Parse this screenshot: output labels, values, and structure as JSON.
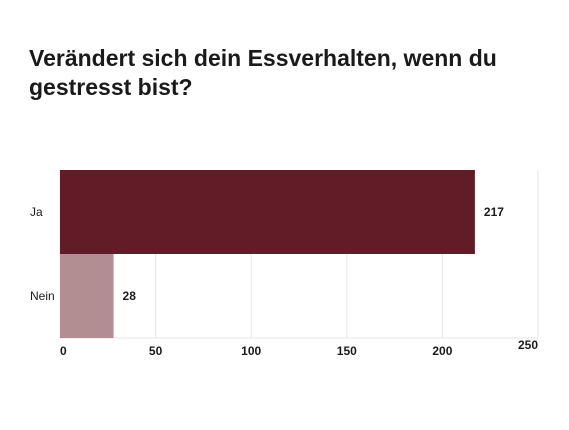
{
  "chart_data": {
    "type": "bar",
    "orientation": "horizontal",
    "title": "Verändert sich dein Essverhalten, wenn du gestresst bist?",
    "categories": [
      "Ja",
      "Nein"
    ],
    "values": [
      217,
      28
    ],
    "xlim": [
      0,
      250
    ],
    "xticks": [
      0,
      50,
      100,
      150,
      200,
      250
    ],
    "grid": true,
    "colors": [
      "#621c28",
      "#b28e92"
    ]
  }
}
